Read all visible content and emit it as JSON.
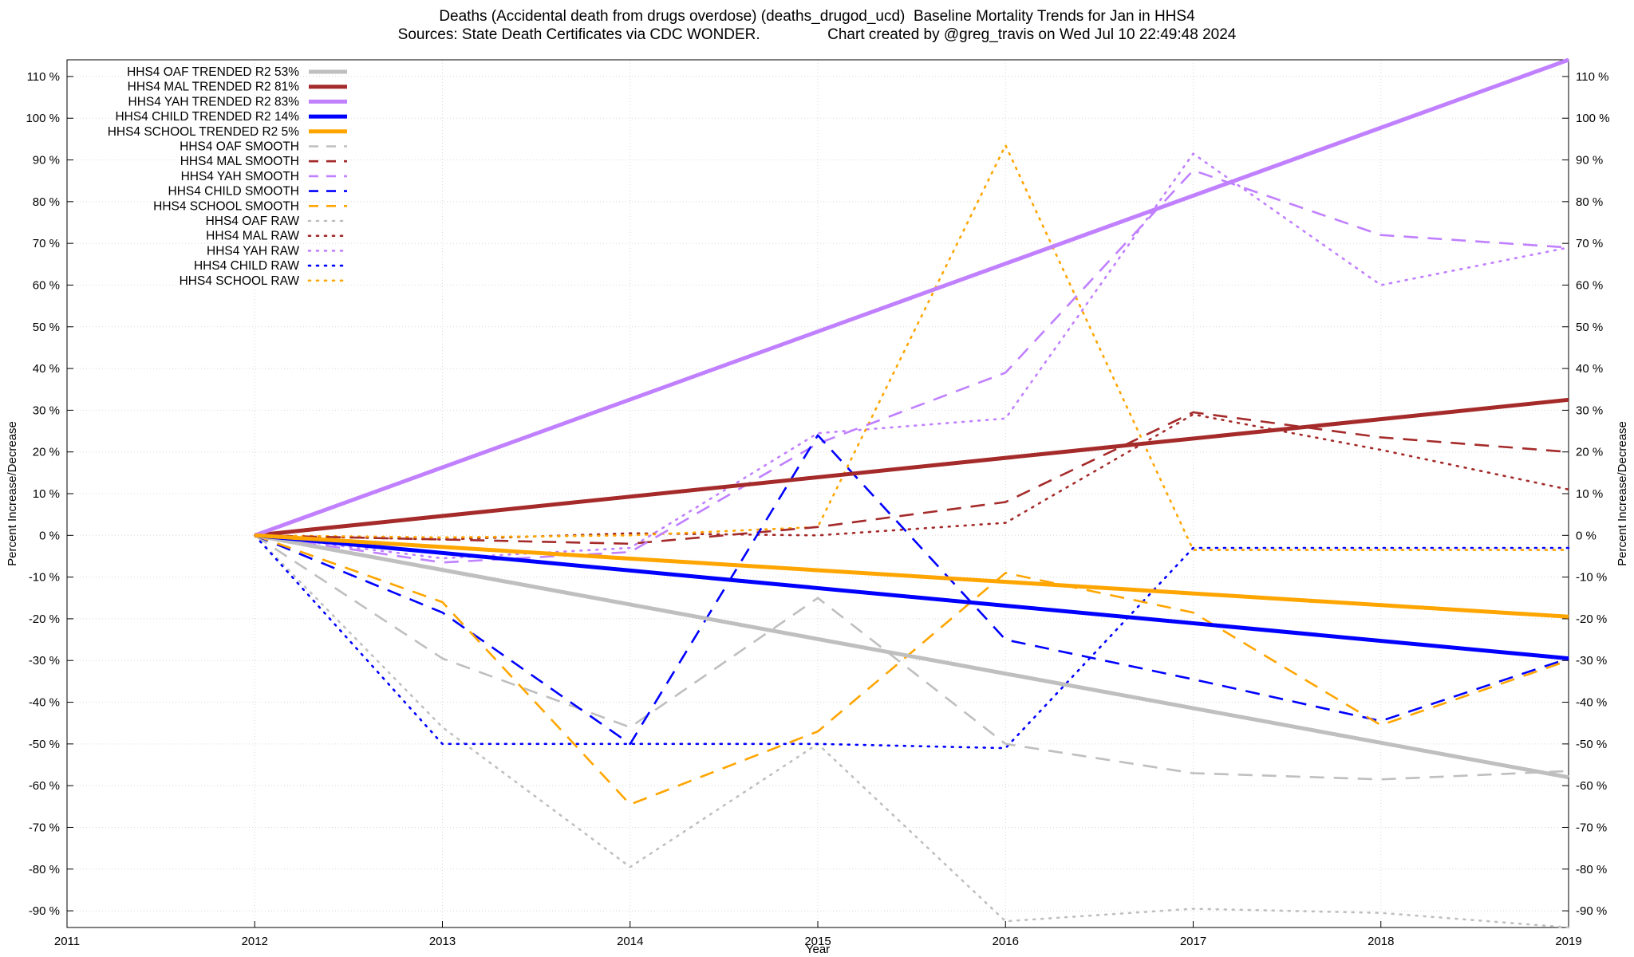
{
  "chart_data": {
    "type": "line",
    "title": "Deaths (Accidental death from drugs overdose) (deaths_drugod_ucd)  Baseline Mortality Trends for Jan in HHS4",
    "subtitle": "Sources: State Death Certificates via CDC WONDER.                Chart created by @greg_travis on Wed Jul 10 22:49:48 2024",
    "xlabel": "Year",
    "ylabel": "Percent Increase/Decrease",
    "y2label": "Percent Increase/Decrease",
    "xlim": [
      2011,
      2019
    ],
    "ylim": [
      -94,
      114
    ],
    "x_ticks": [
      2011,
      2012,
      2013,
      2014,
      2015,
      2016,
      2017,
      2018,
      2019
    ],
    "y_ticks": [
      110,
      100,
      90,
      80,
      70,
      60,
      50,
      40,
      30,
      20,
      10,
      0,
      -10,
      -20,
      -30,
      -40,
      -50,
      -60,
      -70,
      -80,
      -90
    ],
    "y_tick_suffix": " %",
    "grid": true,
    "legend_position": "top-left",
    "series": [
      {
        "name": "HHS4 OAF TRENDED R2",
        "r2": "53%",
        "style": "solid",
        "color": "#bfbfbf",
        "x": [
          2012,
          2019
        ],
        "values": [
          0,
          -58
        ]
      },
      {
        "name": "HHS4 MAL TRENDED R2",
        "r2": "81%",
        "style": "solid",
        "color": "#a52a2a",
        "x": [
          2012,
          2019
        ],
        "values": [
          0,
          32.5
        ]
      },
      {
        "name": "HHS4 YAH TRENDED R2",
        "r2": "83%",
        "style": "solid",
        "color": "#c080ff",
        "x": [
          2012,
          2019
        ],
        "values": [
          0,
          114
        ]
      },
      {
        "name": "HHS4 CHILD TRENDED R2",
        "r2": "14%",
        "style": "solid",
        "color": "#0000ff",
        "x": [
          2012,
          2019
        ],
        "values": [
          0,
          -29.5
        ]
      },
      {
        "name": "HHS4 SCHOOL TRENDED R2",
        "r2": "5%",
        "style": "solid",
        "color": "#ffa500",
        "x": [
          2012,
          2019
        ],
        "values": [
          0,
          -19.5
        ]
      },
      {
        "name": "HHS4 OAF SMOOTH",
        "r2": "",
        "style": "dashed",
        "color": "#bfbfbf",
        "x": [
          2012,
          2013,
          2014,
          2015,
          2016,
          2017,
          2018,
          2019
        ],
        "values": [
          0,
          -29.5,
          -46,
          -15,
          -50,
          -57,
          -58.5,
          -56.5
        ]
      },
      {
        "name": "HHS4 MAL SMOOTH",
        "r2": "",
        "style": "dashed",
        "color": "#a52a2a",
        "x": [
          2012,
          2013,
          2014,
          2015,
          2016,
          2017,
          2018,
          2019
        ],
        "values": [
          0,
          -1,
          -2,
          2,
          8,
          29.5,
          23.5,
          20
        ]
      },
      {
        "name": "HHS4 YAH SMOOTH",
        "r2": "",
        "style": "dashed",
        "color": "#c080ff",
        "x": [
          2012,
          2013,
          2014,
          2015,
          2016,
          2017,
          2018,
          2019
        ],
        "values": [
          0,
          -6.5,
          -4,
          22,
          39,
          87.5,
          72,
          69
        ]
      },
      {
        "name": "HHS4 CHILD SMOOTH",
        "r2": "",
        "style": "dashed",
        "color": "#0000ff",
        "x": [
          2012,
          2013,
          2014,
          2015,
          2016,
          2017,
          2018,
          2019
        ],
        "values": [
          0,
          -18.5,
          -50,
          24,
          -25,
          -34.5,
          -44.5,
          -29.5
        ]
      },
      {
        "name": "HHS4 SCHOOL SMOOTH",
        "r2": "",
        "style": "dashed",
        "color": "#ffa500",
        "x": [
          2012,
          2013,
          2014,
          2015,
          2016,
          2017,
          2018,
          2019
        ],
        "values": [
          0,
          -16,
          -64.5,
          -47,
          -9,
          -18.5,
          -45.5,
          -30
        ]
      },
      {
        "name": "HHS4 OAF RAW",
        "r2": "",
        "style": "dotted",
        "color": "#bfbfbf",
        "x": [
          2012,
          2013,
          2014,
          2015,
          2016,
          2017,
          2018,
          2019
        ],
        "values": [
          0,
          -46,
          -79.5,
          -50,
          -92.5,
          -89.5,
          -90.5,
          -94
        ]
      },
      {
        "name": "HHS4 MAL RAW",
        "r2": "",
        "style": "dotted",
        "color": "#a52a2a",
        "x": [
          2012,
          2013,
          2014,
          2015,
          2016,
          2017,
          2018,
          2019
        ],
        "values": [
          0,
          -1,
          0.5,
          0,
          3,
          29,
          20.5,
          11
        ]
      },
      {
        "name": "HHS4 YAH RAW",
        "r2": "",
        "style": "dotted",
        "color": "#c080ff",
        "x": [
          2012,
          2013,
          2014,
          2015,
          2016,
          2017,
          2018,
          2019
        ],
        "values": [
          0,
          -5.5,
          -3,
          24.5,
          28,
          91.5,
          60,
          69
        ]
      },
      {
        "name": "HHS4 CHILD RAW",
        "r2": "",
        "style": "dotted",
        "color": "#0000ff",
        "x": [
          2012,
          2013,
          2014,
          2015,
          2016,
          2017,
          2018,
          2019
        ],
        "values": [
          0,
          -50,
          -50,
          -50,
          -51,
          -3,
          -3,
          -3
        ]
      },
      {
        "name": "HHS4 SCHOOL RAW",
        "r2": "",
        "style": "dotted",
        "color": "#ffa500",
        "x": [
          2012,
          2013,
          2014,
          2015,
          2016,
          2017,
          2018,
          2019
        ],
        "values": [
          0,
          -0.5,
          0,
          2,
          93.5,
          -3.5,
          -3.5,
          -3.5
        ]
      }
    ]
  }
}
